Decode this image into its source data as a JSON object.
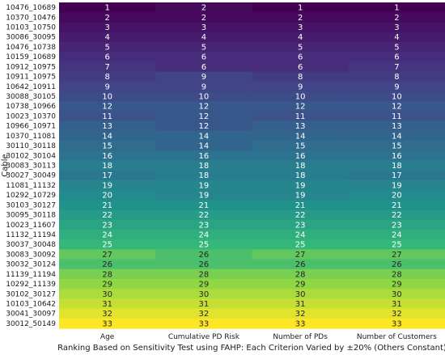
{
  "chart_data": {
    "type": "heatmap",
    "xlabel": "Ranking Based on Sensitivity Test using FAHP: Each Criterion Varied by ±20% (Others Constant)",
    "ylabel": "Cable",
    "columns": [
      "Age",
      "Cumulative PD Risk",
      "Number of PDs",
      "Number of Customers"
    ],
    "rows": [
      "10476_10689",
      "10370_10476",
      "10103_10750",
      "30086_30095",
      "10476_10738",
      "10159_10689",
      "10912_10975",
      "10911_10975",
      "10642_10911",
      "30088_30105",
      "10738_10966",
      "10023_10370",
      "10966_10971",
      "10370_11081",
      "30110_30118",
      "30102_30104",
      "30083_30113",
      "30027_30049",
      "11081_11132",
      "10292_10729",
      "30103_30127",
      "30095_30118",
      "10023_11607",
      "11132_11194",
      "30037_30048",
      "30083_30092",
      "30032_30124",
      "11139_11194",
      "10292_11139",
      "30102_30127",
      "10103_10642",
      "30041_30097",
      "30012_50149"
    ],
    "values": [
      [
        1,
        2,
        1,
        1
      ],
      [
        2,
        2,
        2,
        2
      ],
      [
        3,
        3,
        3,
        3
      ],
      [
        4,
        4,
        4,
        4
      ],
      [
        5,
        5,
        5,
        5
      ],
      [
        6,
        6,
        6,
        6
      ],
      [
        7,
        6,
        6,
        7
      ],
      [
        8,
        9,
        8,
        8
      ],
      [
        9,
        9,
        9,
        9
      ],
      [
        10,
        10,
        10,
        10
      ],
      [
        12,
        12,
        12,
        12
      ],
      [
        11,
        12,
        11,
        11
      ],
      [
        13,
        12,
        13,
        13
      ],
      [
        14,
        14,
        14,
        14
      ],
      [
        15,
        14,
        15,
        15
      ],
      [
        16,
        16,
        16,
        16
      ],
      [
        18,
        18,
        18,
        18
      ],
      [
        17,
        18,
        18,
        17
      ],
      [
        19,
        19,
        19,
        19
      ],
      [
        20,
        19,
        19,
        20
      ],
      [
        21,
        21,
        21,
        21
      ],
      [
        22,
        22,
        22,
        22
      ],
      [
        23,
        23,
        23,
        23
      ],
      [
        24,
        24,
        24,
        24
      ],
      [
        25,
        25,
        25,
        25
      ],
      [
        27,
        26,
        27,
        27
      ],
      [
        26,
        26,
        26,
        26
      ],
      [
        28,
        28,
        28,
        28
      ],
      [
        29,
        29,
        29,
        29
      ],
      [
        30,
        30,
        30,
        30
      ],
      [
        31,
        31,
        31,
        31
      ],
      [
        32,
        32,
        32,
        32
      ],
      [
        33,
        33,
        33,
        33
      ]
    ],
    "value_range": [
      1,
      33
    ],
    "colormap": "viridis",
    "grid": false,
    "legend": "none"
  }
}
